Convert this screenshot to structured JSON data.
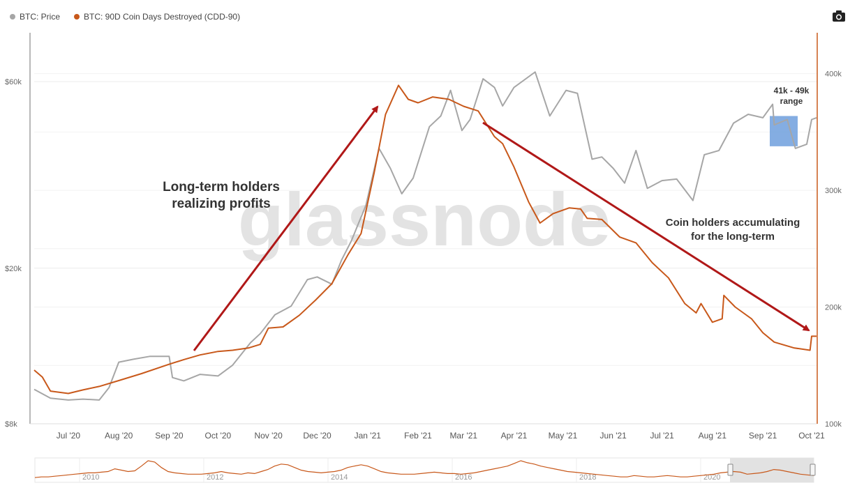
{
  "legend": {
    "items": [
      {
        "label": "BTC: Price",
        "color": "#a6a6a6"
      },
      {
        "label": "BTC: 90D Coin Days Destroyed (CDD-90)",
        "color": "#c8581a"
      }
    ]
  },
  "camera_icon": "camera-icon",
  "chart_data": {
    "type": "line",
    "watermark": "glassnode",
    "x_tick_labels": [
      "Jul '20",
      "Aug '20",
      "Sep '20",
      "Oct '20",
      "Nov '20",
      "Dec '20",
      "Jan '21",
      "Feb '21",
      "Mar '21",
      "Apr '21",
      "May '21",
      "Jun '21",
      "Jul '21",
      "Aug '21",
      "Sep '21",
      "Oct '21"
    ],
    "x_range": [
      "2020-06-10",
      "2021-10-04"
    ],
    "y_left": {
      "label": "",
      "scale": "log",
      "ticks": [
        "$8k",
        "$20k",
        "$60k"
      ],
      "tick_values": [
        8000,
        20000,
        60000
      ],
      "range": [
        8000,
        80000
      ]
    },
    "y_right": {
      "label": "",
      "scale": "linear",
      "ticks": [
        "100k",
        "200k",
        "300k",
        "400k"
      ],
      "tick_values": [
        100000,
        200000,
        300000,
        400000
      ],
      "range": [
        100000,
        435000
      ]
    },
    "series": [
      {
        "name": "BTC: Price",
        "color": "#a6a6a6",
        "axis": "left",
        "points": [
          [
            "2020-06-10",
            9800
          ],
          [
            "2020-06-20",
            9300
          ],
          [
            "2020-07-01",
            9200
          ],
          [
            "2020-07-10",
            9250
          ],
          [
            "2020-07-20",
            9200
          ],
          [
            "2020-07-26",
            9900
          ],
          [
            "2020-08-01",
            11500
          ],
          [
            "2020-08-10",
            11700
          ],
          [
            "2020-08-20",
            11900
          ],
          [
            "2020-09-01",
            11900
          ],
          [
            "2020-09-03",
            10500
          ],
          [
            "2020-09-10",
            10300
          ],
          [
            "2020-09-20",
            10700
          ],
          [
            "2020-10-01",
            10600
          ],
          [
            "2020-10-10",
            11300
          ],
          [
            "2020-10-21",
            12900
          ],
          [
            "2020-10-27",
            13600
          ],
          [
            "2020-11-05",
            15200
          ],
          [
            "2020-11-15",
            16000
          ],
          [
            "2020-11-25",
            18700
          ],
          [
            "2020-12-01",
            19000
          ],
          [
            "2020-12-10",
            18200
          ],
          [
            "2020-12-16",
            21000
          ],
          [
            "2020-12-22",
            23500
          ],
          [
            "2020-12-31",
            29000
          ],
          [
            "2021-01-08",
            40500
          ],
          [
            "2021-01-15",
            36000
          ],
          [
            "2021-01-22",
            31000
          ],
          [
            "2021-01-29",
            34000
          ],
          [
            "2021-02-08",
            46000
          ],
          [
            "2021-02-15",
            49000
          ],
          [
            "2021-02-21",
            57000
          ],
          [
            "2021-02-28",
            45000
          ],
          [
            "2021-03-05",
            48000
          ],
          [
            "2021-03-13",
            61000
          ],
          [
            "2021-03-20",
            58000
          ],
          [
            "2021-03-25",
            52000
          ],
          [
            "2021-04-01",
            58000
          ],
          [
            "2021-04-14",
            63500
          ],
          [
            "2021-04-23",
            49000
          ],
          [
            "2021-05-03",
            57000
          ],
          [
            "2021-05-10",
            56000
          ],
          [
            "2021-05-19",
            38000
          ],
          [
            "2021-05-25",
            38500
          ],
          [
            "2021-06-01",
            36000
          ],
          [
            "2021-06-08",
            33000
          ],
          [
            "2021-06-15",
            40000
          ],
          [
            "2021-06-22",
            32000
          ],
          [
            "2021-07-01",
            33500
          ],
          [
            "2021-07-10",
            33800
          ],
          [
            "2021-07-20",
            29800
          ],
          [
            "2021-07-27",
            39000
          ],
          [
            "2021-08-05",
            40000
          ],
          [
            "2021-08-14",
            47000
          ],
          [
            "2021-08-23",
            49500
          ],
          [
            "2021-09-01",
            48500
          ],
          [
            "2021-09-07",
            52500
          ],
          [
            "2021-09-08",
            46500
          ],
          [
            "2021-09-16",
            48000
          ],
          [
            "2021-09-21",
            40500
          ],
          [
            "2021-09-28",
            41500
          ],
          [
            "2021-10-01",
            48000
          ],
          [
            "2021-10-04",
            48500
          ]
        ]
      },
      {
        "name": "BTC: 90D Coin Days Destroyed (CDD-90)",
        "color": "#c8581a",
        "axis": "right",
        "points": [
          [
            "2020-06-10",
            146000
          ],
          [
            "2020-06-15",
            140000
          ],
          [
            "2020-06-20",
            128000
          ],
          [
            "2020-07-01",
            126000
          ],
          [
            "2020-07-10",
            129000
          ],
          [
            "2020-07-20",
            132000
          ],
          [
            "2020-08-01",
            137000
          ],
          [
            "2020-08-15",
            143000
          ],
          [
            "2020-09-01",
            151000
          ],
          [
            "2020-09-10",
            155000
          ],
          [
            "2020-09-20",
            159000
          ],
          [
            "2020-10-01",
            162000
          ],
          [
            "2020-10-10",
            163000
          ],
          [
            "2020-10-20",
            165000
          ],
          [
            "2020-10-27",
            168000
          ],
          [
            "2020-11-01",
            182000
          ],
          [
            "2020-11-10",
            183000
          ],
          [
            "2020-11-20",
            193000
          ],
          [
            "2020-11-30",
            206000
          ],
          [
            "2020-12-10",
            220000
          ],
          [
            "2020-12-20",
            245000
          ],
          [
            "2020-12-28",
            263000
          ],
          [
            "2021-01-05",
            315000
          ],
          [
            "2021-01-12",
            365000
          ],
          [
            "2021-01-20",
            390000
          ],
          [
            "2021-01-26",
            378000
          ],
          [
            "2021-02-01",
            375000
          ],
          [
            "2021-02-10",
            380000
          ],
          [
            "2021-02-20",
            378000
          ],
          [
            "2021-03-01",
            372000
          ],
          [
            "2021-03-10",
            368000
          ],
          [
            "2021-03-20",
            346000
          ],
          [
            "2021-03-25",
            340000
          ],
          [
            "2021-04-01",
            320000
          ],
          [
            "2021-04-10",
            290000
          ],
          [
            "2021-04-17",
            272000
          ],
          [
            "2021-04-25",
            280000
          ],
          [
            "2021-05-05",
            285000
          ],
          [
            "2021-05-12",
            284000
          ],
          [
            "2021-05-16",
            276000
          ],
          [
            "2021-05-25",
            275000
          ],
          [
            "2021-06-05",
            260000
          ],
          [
            "2021-06-15",
            255000
          ],
          [
            "2021-06-25",
            238000
          ],
          [
            "2021-07-05",
            225000
          ],
          [
            "2021-07-15",
            203000
          ],
          [
            "2021-07-22",
            195000
          ],
          [
            "2021-07-25",
            203000
          ],
          [
            "2021-08-01",
            187000
          ],
          [
            "2021-08-07",
            190000
          ],
          [
            "2021-08-08",
            210000
          ],
          [
            "2021-08-15",
            200000
          ],
          [
            "2021-08-25",
            190000
          ],
          [
            "2021-09-01",
            178000
          ],
          [
            "2021-09-08",
            170000
          ],
          [
            "2021-09-20",
            165000
          ],
          [
            "2021-09-30",
            163000
          ],
          [
            "2021-10-01",
            175000
          ],
          [
            "2021-10-04",
            175000
          ]
        ]
      }
    ],
    "annotations": {
      "left_text": [
        "Long-term holders",
        "realizing profits"
      ],
      "right_text": [
        "Coin holders accumulating",
        "for the long-term"
      ],
      "box_text": [
        "41k - 49k",
        "range"
      ],
      "range_box_left": [
        41000,
        49000
      ]
    },
    "navigator": {
      "year_labels": [
        "2010",
        "2012",
        "2014",
        "2016",
        "2018",
        "2020"
      ],
      "sparkline": [
        5,
        6,
        6,
        7,
        8,
        9,
        10,
        11,
        12,
        12,
        13,
        14,
        18,
        16,
        14,
        15,
        22,
        30,
        28,
        20,
        14,
        12,
        11,
        10,
        10,
        10,
        11,
        12,
        14,
        12,
        11,
        10,
        12,
        11,
        14,
        17,
        22,
        25,
        24,
        20,
        16,
        14,
        13,
        12,
        13,
        14,
        16,
        20,
        22,
        24,
        22,
        18,
        14,
        12,
        11,
        10,
        10,
        10,
        11,
        12,
        13,
        12,
        11,
        11,
        10,
        11,
        12,
        14,
        16,
        18,
        20,
        22,
        26,
        30,
        27,
        25,
        22,
        20,
        18,
        16,
        14,
        13,
        12,
        11,
        10,
        9,
        8,
        7,
        6,
        6,
        8,
        7,
        6,
        6,
        7,
        8,
        7,
        6,
        6,
        7,
        8,
        9,
        10,
        12,
        13,
        14,
        13,
        10,
        11,
        12,
        14,
        17,
        16,
        14,
        12,
        10,
        9,
        8
      ]
    }
  }
}
